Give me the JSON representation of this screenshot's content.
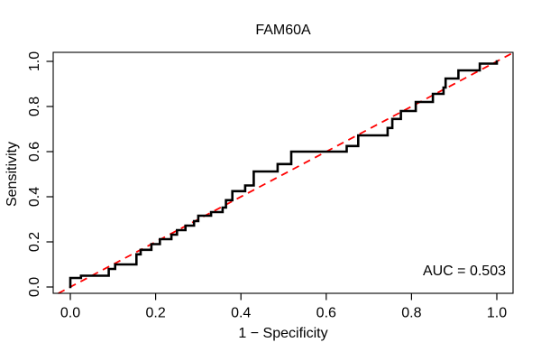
{
  "title": "FAM60A",
  "axes": {
    "x_label": "1 − Specificity",
    "y_label": "Sensitivity",
    "x_ticks": [
      0.0,
      0.2,
      0.4,
      0.6,
      0.8,
      1.0
    ],
    "x_tick_labels": [
      "0.0",
      "0.2",
      "0.4",
      "0.6",
      "0.8",
      "1.0"
    ],
    "y_ticks": [
      0.0,
      0.2,
      0.4,
      0.6,
      0.8,
      1.0
    ],
    "y_tick_labels": [
      "0.0",
      "0.2",
      "0.4",
      "0.6",
      "0.8",
      "1.0"
    ]
  },
  "annotation": {
    "auc_label": "AUC = 0.503"
  },
  "colors": {
    "roc_curve": "#000000",
    "diagonal": "#FF0000",
    "axis": "#000000",
    "background": "#FFFFFF"
  },
  "chart_data": {
    "type": "line",
    "subtype": "roc-step-curve",
    "title": "FAM60A",
    "xlabel": "1 − Specificity",
    "ylabel": "Sensitivity",
    "xlim": [
      0,
      1
    ],
    "ylim": [
      0,
      1
    ],
    "x_ticks": [
      0.0,
      0.2,
      0.4,
      0.6,
      0.8,
      1.0
    ],
    "y_ticks": [
      0.0,
      0.2,
      0.4,
      0.6,
      0.8,
      1.0
    ],
    "grid": false,
    "legend": "none",
    "auc": 0.503,
    "series": [
      {
        "name": "ROC curve",
        "line_type": "step-solid",
        "color": "#000000",
        "points": [
          [
            0.0,
            0.0
          ],
          [
            0.0,
            0.04
          ],
          [
            0.025,
            0.04
          ],
          [
            0.025,
            0.05
          ],
          [
            0.09,
            0.05
          ],
          [
            0.09,
            0.08
          ],
          [
            0.105,
            0.08
          ],
          [
            0.105,
            0.1
          ],
          [
            0.155,
            0.1
          ],
          [
            0.155,
            0.145
          ],
          [
            0.165,
            0.145
          ],
          [
            0.165,
            0.165
          ],
          [
            0.19,
            0.165
          ],
          [
            0.19,
            0.19
          ],
          [
            0.21,
            0.19
          ],
          [
            0.21,
            0.212
          ],
          [
            0.237,
            0.212
          ],
          [
            0.237,
            0.232
          ],
          [
            0.25,
            0.232
          ],
          [
            0.25,
            0.252
          ],
          [
            0.27,
            0.252
          ],
          [
            0.27,
            0.272
          ],
          [
            0.29,
            0.272
          ],
          [
            0.29,
            0.292
          ],
          [
            0.3,
            0.292
          ],
          [
            0.3,
            0.316
          ],
          [
            0.33,
            0.316
          ],
          [
            0.33,
            0.332
          ],
          [
            0.357,
            0.332
          ],
          [
            0.357,
            0.352
          ],
          [
            0.365,
            0.352
          ],
          [
            0.365,
            0.385
          ],
          [
            0.38,
            0.385
          ],
          [
            0.38,
            0.425
          ],
          [
            0.41,
            0.425
          ],
          [
            0.41,
            0.45
          ],
          [
            0.43,
            0.45
          ],
          [
            0.43,
            0.512
          ],
          [
            0.486,
            0.512
          ],
          [
            0.486,
            0.545
          ],
          [
            0.518,
            0.545
          ],
          [
            0.518,
            0.6
          ],
          [
            0.648,
            0.6
          ],
          [
            0.648,
            0.625
          ],
          [
            0.675,
            0.625
          ],
          [
            0.675,
            0.672
          ],
          [
            0.744,
            0.672
          ],
          [
            0.744,
            0.705
          ],
          [
            0.755,
            0.705
          ],
          [
            0.755,
            0.745
          ],
          [
            0.775,
            0.745
          ],
          [
            0.775,
            0.78
          ],
          [
            0.81,
            0.78
          ],
          [
            0.81,
            0.82
          ],
          [
            0.85,
            0.82
          ],
          [
            0.85,
            0.856
          ],
          [
            0.875,
            0.856
          ],
          [
            0.875,
            0.884
          ],
          [
            0.88,
            0.884
          ],
          [
            0.88,
            0.924
          ],
          [
            0.91,
            0.924
          ],
          [
            0.91,
            0.96
          ],
          [
            0.96,
            0.96
          ],
          [
            0.96,
            0.99
          ],
          [
            1.0,
            0.99
          ],
          [
            1.0,
            1.0
          ]
        ]
      },
      {
        "name": "Chance diagonal",
        "line_type": "dashed",
        "color": "#FF0000",
        "points": [
          [
            0,
            0
          ],
          [
            1,
            1
          ]
        ]
      }
    ]
  }
}
